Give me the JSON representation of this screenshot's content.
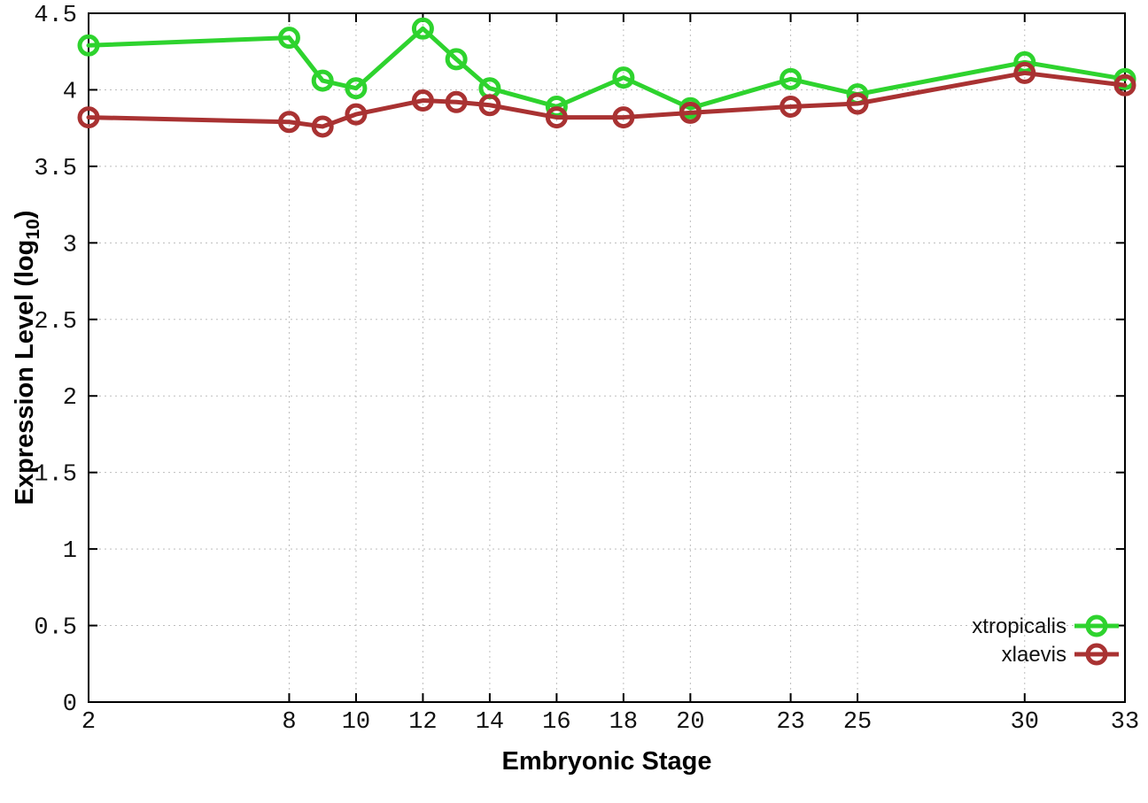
{
  "chart_data": {
    "type": "line",
    "title": "",
    "xlabel": "Embryonic Stage",
    "ylabel": "Expression Level (log10)",
    "ylabel_rich": {
      "prefix": "Expression Level (log",
      "sub": "10",
      "suffix": ")"
    },
    "x": [
      2,
      8,
      9,
      10,
      12,
      13,
      14,
      16,
      18,
      20,
      23,
      25,
      30,
      33
    ],
    "series": [
      {
        "name": "xtropicalis",
        "color": "#2ed32e",
        "values": [
          4.29,
          4.34,
          4.06,
          4.01,
          4.4,
          4.2,
          4.01,
          3.89,
          4.08,
          3.88,
          4.07,
          3.97,
          4.18,
          4.07
        ]
      },
      {
        "name": "xlaevis",
        "color": "#a93232",
        "values": [
          3.82,
          3.79,
          3.76,
          3.84,
          3.93,
          3.92,
          3.9,
          3.82,
          3.82,
          3.85,
          3.89,
          3.91,
          4.11,
          4.03
        ]
      }
    ],
    "xlim": [
      2,
      33
    ],
    "ylim": [
      0,
      4.5
    ],
    "xticks": [
      2,
      8,
      10,
      12,
      14,
      16,
      18,
      20,
      23,
      25,
      30,
      33
    ],
    "xtick_labels": [
      "2",
      "8",
      "10",
      "12",
      "14",
      "16",
      "18",
      "20",
      "23",
      "25",
      "30",
      "33"
    ],
    "yticks": [
      0,
      0.5,
      1,
      1.5,
      2,
      2.5,
      3,
      3.5,
      4,
      4.5
    ],
    "ytick_labels": [
      "0",
      "0.5",
      "1",
      "1.5",
      "2",
      "2.5",
      "3",
      "3.5",
      "4",
      "4.5"
    ],
    "grid": true,
    "legend_position": "bottom-right-inside",
    "marker": "open-circle",
    "axis_color": "#000000"
  }
}
